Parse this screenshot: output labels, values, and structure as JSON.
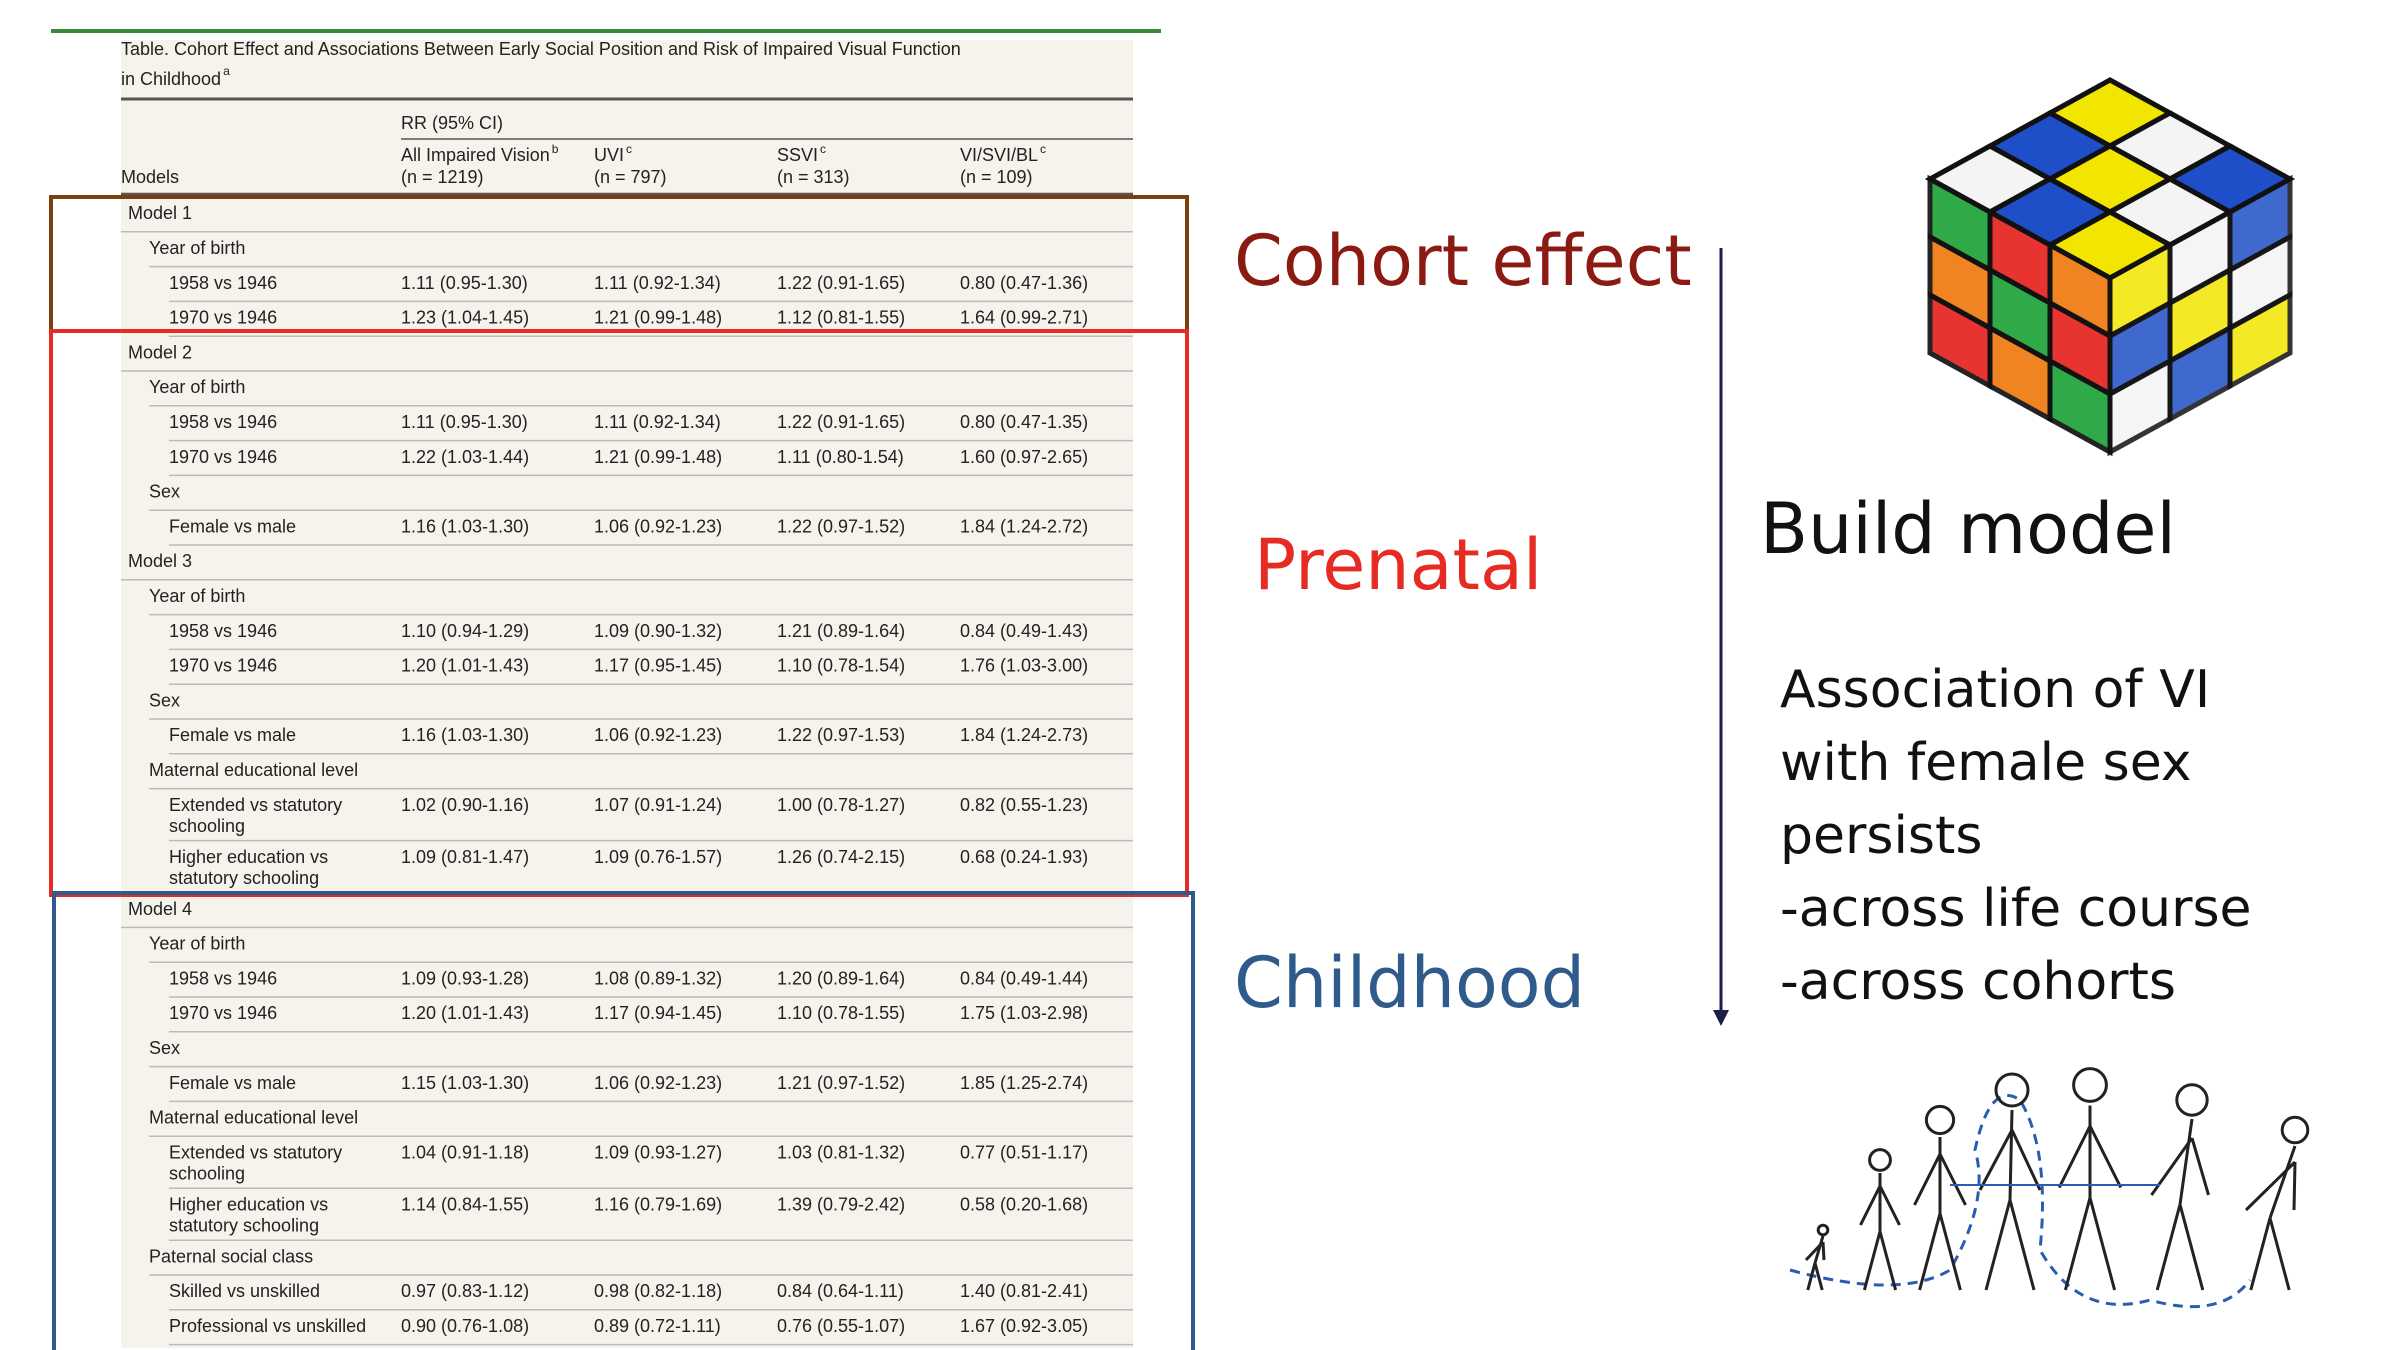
{
  "table": {
    "caption": [
      "Table. Cohort Effect and Associations Between Early Social Position and Risk of Impaired Visual Function",
      "in Childhood"
    ],
    "caption_note": "a",
    "models_header": "Models",
    "group_header": "RR (95% CI)",
    "columns": [
      {
        "name": "All Impaired Vision",
        "note": "b",
        "n": "(n = 1219)"
      },
      {
        "name": "UVI",
        "note": "c",
        "n": "(n = 797)"
      },
      {
        "name": "SSVI",
        "note": "c",
        "n": "(n = 313)"
      },
      {
        "name": "VI/SVI/BL",
        "note": "c",
        "n": "(n = 109)"
      }
    ],
    "models": [
      {
        "name": "Model 1",
        "groups": [
          {
            "name": "Year of birth",
            "rows": [
              {
                "label": "1958 vs 1946",
                "cells": [
                  "1.11 (0.95-1.30)",
                  "1.11 (0.92-1.34)",
                  "1.22 (0.91-1.65)",
                  "0.80 (0.47-1.36)"
                ]
              },
              {
                "label": "1970 vs 1946",
                "cells": [
                  "1.23 (1.04-1.45)",
                  "1.21 (0.99-1.48)",
                  "1.12 (0.81-1.55)",
                  "1.64 (0.99-2.71)"
                ]
              }
            ]
          }
        ]
      },
      {
        "name": "Model 2",
        "groups": [
          {
            "name": "Year of birth",
            "rows": [
              {
                "label": "1958 vs 1946",
                "cells": [
                  "1.11 (0.95-1.30)",
                  "1.11 (0.92-1.34)",
                  "1.22 (0.91-1.65)",
                  "0.80 (0.47-1.35)"
                ]
              },
              {
                "label": "1970 vs 1946",
                "cells": [
                  "1.22 (1.03-1.44)",
                  "1.21 (0.99-1.48)",
                  "1.11 (0.80-1.54)",
                  "1.60 (0.97-2.65)"
                ]
              }
            ]
          },
          {
            "name": "Sex",
            "rows": [
              {
                "label": "Female vs male",
                "cells": [
                  "1.16 (1.03-1.30)",
                  "1.06 (0.92-1.23)",
                  "1.22 (0.97-1.52)",
                  "1.84 (1.24-2.72)"
                ]
              }
            ]
          }
        ]
      },
      {
        "name": "Model 3",
        "groups": [
          {
            "name": "Year of birth",
            "rows": [
              {
                "label": "1958 vs 1946",
                "cells": [
                  "1.10 (0.94-1.29)",
                  "1.09 (0.90-1.32)",
                  "1.21 (0.89-1.64)",
                  "0.84 (0.49-1.43)"
                ]
              },
              {
                "label": "1970 vs 1946",
                "cells": [
                  "1.20 (1.01-1.43)",
                  "1.17 (0.95-1.45)",
                  "1.10 (0.78-1.54)",
                  "1.76 (1.03-3.00)"
                ]
              }
            ]
          },
          {
            "name": "Sex",
            "rows": [
              {
                "label": "Female vs male",
                "cells": [
                  "1.16 (1.03-1.30)",
                  "1.06 (0.92-1.23)",
                  "1.22 (0.97-1.53)",
                  "1.84 (1.24-2.73)"
                ]
              }
            ]
          },
          {
            "name": "Maternal educational level",
            "rows": [
              {
                "label": [
                  "Extended vs statutory",
                  "schooling"
                ],
                "cells": [
                  "1.02 (0.90-1.16)",
                  "1.07 (0.91-1.24)",
                  "1.00 (0.78-1.27)",
                  "0.82 (0.55-1.23)"
                ]
              },
              {
                "label": [
                  "Higher education vs",
                  "statutory schooling"
                ],
                "cells": [
                  "1.09 (0.81-1.47)",
                  "1.09 (0.76-1.57)",
                  "1.26 (0.74-2.15)",
                  "0.68 (0.24-1.93)"
                ]
              }
            ]
          }
        ]
      },
      {
        "name": "Model 4",
        "groups": [
          {
            "name": "Year of birth",
            "rows": [
              {
                "label": "1958 vs 1946",
                "cells": [
                  "1.09 (0.93-1.28)",
                  "1.08 (0.89-1.32)",
                  "1.20 (0.89-1.64)",
                  "0.84 (0.49-1.44)"
                ]
              },
              {
                "label": "1970 vs 1946",
                "cells": [
                  "1.20 (1.01-1.43)",
                  "1.17 (0.94-1.45)",
                  "1.10 (0.78-1.55)",
                  "1.75 (1.03-2.98)"
                ]
              }
            ]
          },
          {
            "name": "Sex",
            "rows": [
              {
                "label": "Female vs male",
                "cells": [
                  "1.15 (1.03-1.30)",
                  "1.06 (0.92-1.23)",
                  "1.21 (0.97-1.52)",
                  "1.85 (1.25-2.74)"
                ]
              }
            ]
          },
          {
            "name": "Maternal educational level",
            "rows": [
              {
                "label": [
                  "Extended vs statutory",
                  "schooling"
                ],
                "cells": [
                  "1.04 (0.91-1.18)",
                  "1.09 (0.93-1.27)",
                  "1.03 (0.81-1.32)",
                  "0.77 (0.51-1.17)"
                ]
              },
              {
                "label": [
                  "Higher education vs",
                  "statutory schooling"
                ],
                "cells": [
                  "1.14 (0.84-1.55)",
                  "1.16 (0.79-1.69)",
                  "1.39 (0.79-2.42)",
                  "0.58 (0.20-1.68)"
                ]
              }
            ]
          },
          {
            "name": "Paternal social class",
            "rows": [
              {
                "label": "Skilled vs unskilled",
                "cells": [
                  "0.97 (0.83-1.12)",
                  "0.98 (0.82-1.18)",
                  "0.84 (0.64-1.11)",
                  "1.40 (0.81-2.41)"
                ]
              },
              {
                "label": "Professional vs unskilled",
                "cells": [
                  "0.90 (0.76-1.08)",
                  "0.89 (0.72-1.11)",
                  "0.76 (0.55-1.07)",
                  "1.67 (0.92-3.05)"
                ]
              }
            ]
          }
        ]
      }
    ]
  },
  "labels": {
    "cohort_effect": "Cohort effect",
    "prenatal": "Prenatal",
    "childhood": "Childhood",
    "build_model": "Build model",
    "association": [
      "Association of VI",
      "with female sex",
      "persists",
      "-across life course",
      "-across cohorts"
    ]
  }
}
